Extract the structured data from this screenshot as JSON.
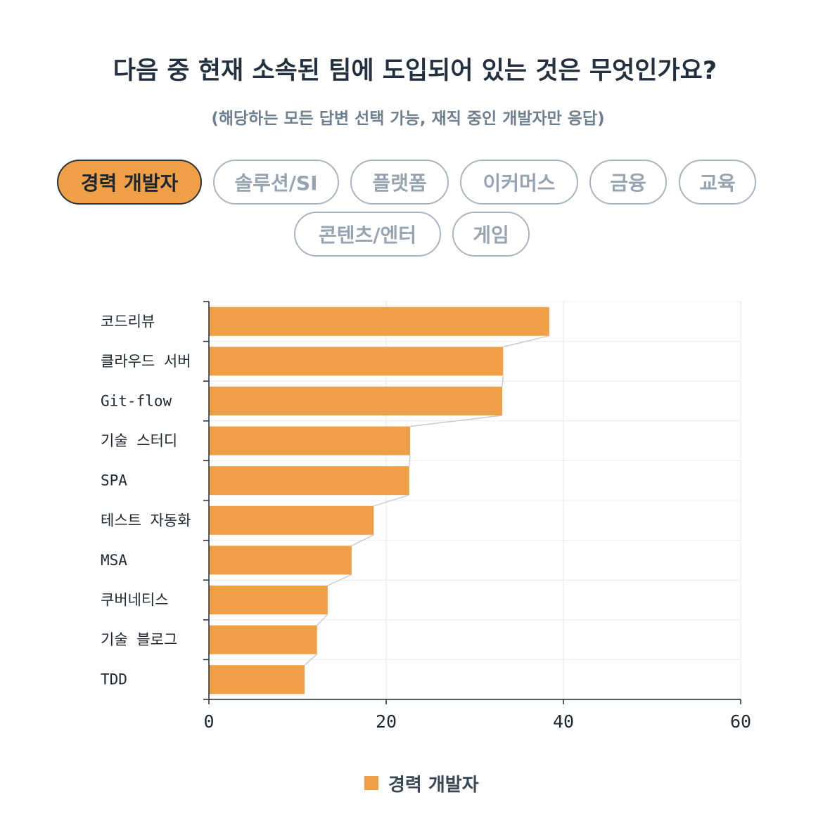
{
  "header": {
    "title": "다음 중 현재 소속된 팀에 도입되어 있는 것은 무엇인가요?",
    "subtitle": "(해당하는 모든 답변 선택 가능, 재직 중인 개발자만 응답)"
  },
  "filters": {
    "selected": "경력 개발자",
    "options": [
      "경력 개발자",
      "솔루션/SI",
      "플랫폼",
      "이커머스",
      "금융",
      "교육",
      "콘텐츠/엔터",
      "게임"
    ]
  },
  "colors": {
    "bar": "#ef9f45",
    "pill_active_bg": "#ef9f45",
    "pill_border": "#a9b4c0",
    "connector": "#c6ccd3"
  },
  "chart_data": {
    "type": "bar",
    "orientation": "horizontal",
    "categories": [
      "코드리뷰",
      "클라우드 서버",
      "Git-flow",
      "기술 스터디",
      "SPA",
      "테스트 자동화",
      "MSA",
      "쿠버네티스",
      "기술 블로그",
      "TDD"
    ],
    "series": [
      {
        "name": "경력 개발자",
        "values": [
          38.4,
          33.2,
          33.1,
          22.7,
          22.6,
          18.6,
          16.1,
          13.4,
          12.2,
          10.8
        ]
      }
    ],
    "xlim": [
      0,
      60
    ],
    "xticks": [
      "0",
      "20",
      "40",
      "60"
    ],
    "grid": true,
    "legend_position": "bottom"
  }
}
